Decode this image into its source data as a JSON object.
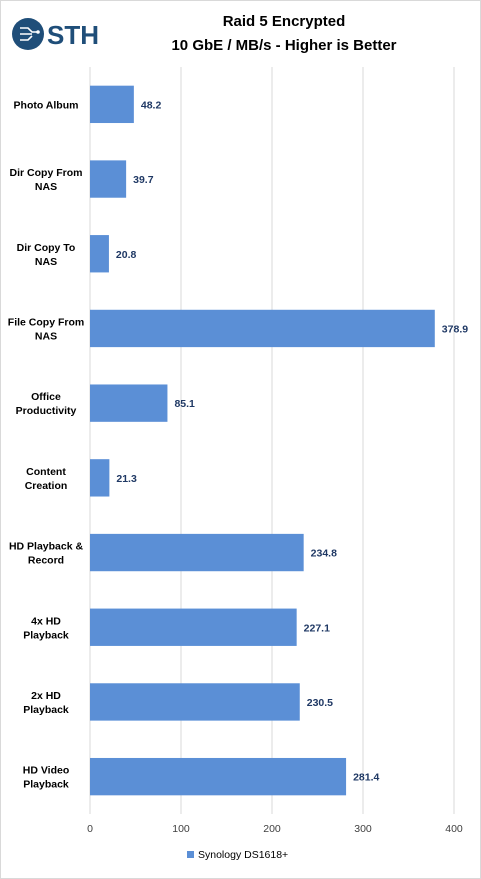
{
  "logo": {
    "text": "STH",
    "icon": "sth-circuit-logo",
    "color": "#1f4e79"
  },
  "chart_data": {
    "type": "bar",
    "orientation": "horizontal",
    "title": "Raid 5 Encrypted",
    "subtitle": "10 GbE / MB/s - Higher is Better",
    "categories": [
      "Photo Album",
      "Dir Copy From NAS",
      "Dir Copy To NAS",
      "File Copy From NAS",
      "Office Productivity",
      "Content Creation",
      "HD Playback & Record",
      "4x HD Playback",
      "2x HD Playback",
      "HD Video Playback"
    ],
    "category_lines": [
      [
        "Photo Album"
      ],
      [
        "Dir Copy From",
        "NAS"
      ],
      [
        "Dir Copy To",
        "NAS"
      ],
      [
        "File Copy From",
        "NAS"
      ],
      [
        "Office",
        "Productivity"
      ],
      [
        "Content",
        "Creation"
      ],
      [
        "HD Playback &",
        "Record"
      ],
      [
        "4x HD",
        "Playback"
      ],
      [
        "2x HD",
        "Playback"
      ],
      [
        "HD Video",
        "Playback"
      ]
    ],
    "series": [
      {
        "name": "Synology DS1618+",
        "color": "#5b8fd6",
        "values": [
          48.2,
          39.7,
          20.8,
          378.9,
          85.1,
          21.3,
          234.8,
          227.1,
          230.5,
          281.4
        ]
      }
    ],
    "data_labels": [
      "48.2",
      "39.7",
      "20.8",
      "378.9",
      "85.1",
      "21.3",
      "234.8",
      "227.1",
      "230.5",
      "281.4"
    ],
    "xlim": [
      0,
      400
    ],
    "xticks": [
      "0",
      "100",
      "200",
      "300",
      "400"
    ],
    "xtick_values": [
      0,
      100,
      200,
      300,
      400
    ],
    "grid": true,
    "legend_position": "bottom",
    "label_color": "#1f3864",
    "grid_color": "#d9d9d9"
  }
}
